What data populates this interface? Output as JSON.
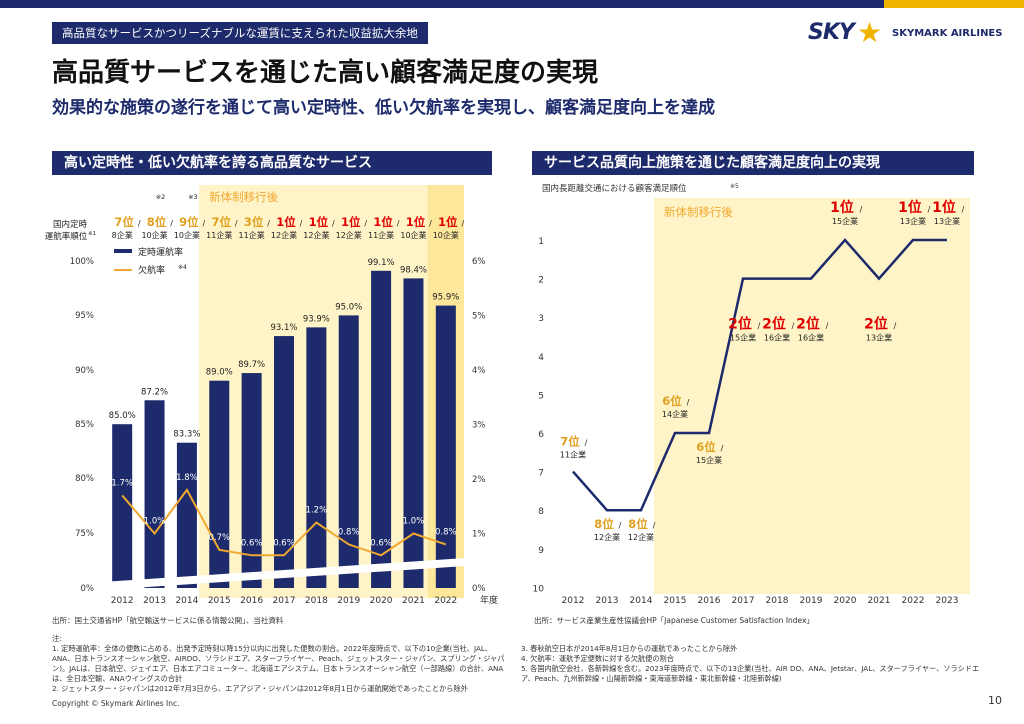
{
  "header": {
    "tagline": "高品質なサービスかつリーズナブルな運賃に支えられた収益拡大余地",
    "title": "高品質サービスを通じた高い顧客満足度の実現",
    "subtitle": "効果的な施策の遂行を通じて高い定時性、低い欠航率を実現し、顧客満足度向上を達成",
    "logo_sky": "SKY",
    "logo_star": "★",
    "logo_airline": "SKYMARK AIRLINES"
  },
  "left_panel": {
    "header": "高い定時性・低い欠航率を誇る高品質なサービス",
    "source": "出所：国土交通省HP「航空輸送サービスに係る情報公開」、当社資料"
  },
  "right_panel": {
    "header": "サービス品質向上施策を通じた顧客満足度向上の実現",
    "source": "出所：サービス産業生産性協議会HP「Japanese Customer Satisfaction Index」"
  },
  "colors": {
    "navy": "#1d2a6b",
    "accent_orange": "#f0a830",
    "highlight_yellow": "#fff4c7",
    "highlight_strong": "#fde79a",
    "rank_red": "#e00000",
    "rank_orange": "#e0a020"
  },
  "chart_data": [
    {
      "type": "bar",
      "highlight_label": "新体制移行後",
      "rank_row_label_line1": "国内定時",
      "rank_row_label_line2": "運航率順位",
      "rank_row_label_sup": "※1",
      "categories": [
        "2012",
        "2013",
        "2014",
        "2015",
        "2016",
        "2017",
        "2018",
        "2019",
        "2020",
        "2021",
        "2022"
      ],
      "x_axis_suffix": "年度",
      "rank_markers": [
        "",
        "※2",
        "※3",
        "",
        "",
        "",
        "",
        "",
        "",
        "",
        ""
      ],
      "rank_positions": [
        "7位",
        "8位",
        "9位",
        "7位",
        "3位",
        "1位",
        "1位",
        "1位",
        "1位",
        "1位",
        "1位"
      ],
      "rank_slash": "/",
      "rank_companies": [
        "8企業",
        "10企業",
        "10企業",
        "11企業",
        "11企業",
        "12企業",
        "12企業",
        "12企業",
        "11企業",
        "10企業",
        "10企業"
      ],
      "series": [
        {
          "name": "定時運航率",
          "kind": "bar",
          "values": [
            85.0,
            87.2,
            83.3,
            89.0,
            89.7,
            93.1,
            93.9,
            95.0,
            99.1,
            98.4,
            95.9
          ],
          "labels": [
            "85.0%",
            "87.2%",
            "83.3%",
            "89.0%",
            "89.7%",
            "93.1%",
            "93.9%",
            "95.0%",
            "99.1%",
            "98.4%",
            "95.9%"
          ]
        },
        {
          "name": "欠航率",
          "name_sup": "※4",
          "kind": "line",
          "values": [
            1.7,
            1.0,
            1.8,
            0.7,
            0.6,
            0.6,
            1.2,
            0.8,
            0.6,
            1.0,
            0.8
          ],
          "labels": [
            "1.7%",
            "1.0%",
            "1.8%",
            "0.7%",
            "0.6%",
            "0.6%",
            "1.2%",
            "0.8%",
            "0.6%",
            "1.0%",
            "0.8%"
          ]
        }
      ],
      "y_left_ticks": [
        "0%",
        "75%",
        "80%",
        "85%",
        "90%",
        "95%",
        "100%"
      ],
      "y_right_ticks": [
        "0%",
        "1%",
        "2%",
        "3%",
        "4%",
        "5%",
        "6%"
      ],
      "y_left_range": [
        70,
        100
      ],
      "y_left_axis_break": true,
      "y_right_range": [
        0,
        6
      ]
    },
    {
      "type": "line",
      "title": "国内長距離交通における顧客満足順位",
      "title_sup": "※5",
      "highlight_label": "新体制移行後",
      "x": [
        "2012",
        "2013",
        "2014",
        "2015",
        "2016",
        "2017",
        "2018",
        "2019",
        "2020",
        "2021",
        "2022",
        "2023"
      ],
      "y_ticks": [
        "1",
        "2",
        "3",
        "4",
        "5",
        "6",
        "7",
        "8",
        "9",
        "10"
      ],
      "ylim": [
        10,
        1
      ],
      "y_inverted": true,
      "series": [
        {
          "values": [
            7,
            8,
            8,
            6,
            6,
            2,
            2,
            2,
            1,
            2,
            1,
            1
          ]
        }
      ],
      "rank_labels": [
        "7位",
        "8位",
        "8位",
        "6位",
        "6位",
        "2位",
        "2位",
        "2位",
        "1位",
        "2位",
        "1位",
        "1位"
      ],
      "rank_slash": "/",
      "rank_companies": [
        "11企業",
        "12企業",
        "12企業",
        "14企業",
        "15企業",
        "15企業",
        "16企業",
        "16企業",
        "15企業",
        "13企業",
        "13企業",
        "13企業"
      ]
    }
  ],
  "notes": {
    "title": "注:",
    "left": [
      "1. 定時運航率：全体の便数に占める、出発予定時刻以降15分以内に出発した便数の割合。2022年度時点で、以下の10企業(当社、JAL、ANA、日本トランスオーシャン航空、AIRDO、ソラシドエア、スターフライヤー、Peach、ジェットスター・ジャパン、スプリング・ジャパン)。JALは、日本航空、ジェイエア、日本エアコミューター、北海道エアシステム、日本トランスオーシャン航空（一部路線）の合計、ANAは、全日本空輸、ANAウイングスの合計",
      "2. ジェットスター・ジャパンは2012年7月3日から、エアアジア・ジャパンは2012年8月1日から運航開始であったことから除外"
    ],
    "right": [
      "3. 春秋航空日本が2014年8月1日からの運航であったことから除外",
      "4. 欠航率：運航予定便数に対する欠航便の割合",
      "5. 各国内航空会社、各新幹線を含む。2023年度時点で、以下の13企業(当社、AIR DO、ANA、Jetstar、JAL、スターフライヤー、ソラシドエア、Peach、九州新幹線・山陽新幹線・東海道新幹線・東北新幹線・北陸新幹線)"
    ]
  },
  "footer": {
    "copyright": "Copyright © Skymark Airlines Inc.",
    "page": "10"
  }
}
